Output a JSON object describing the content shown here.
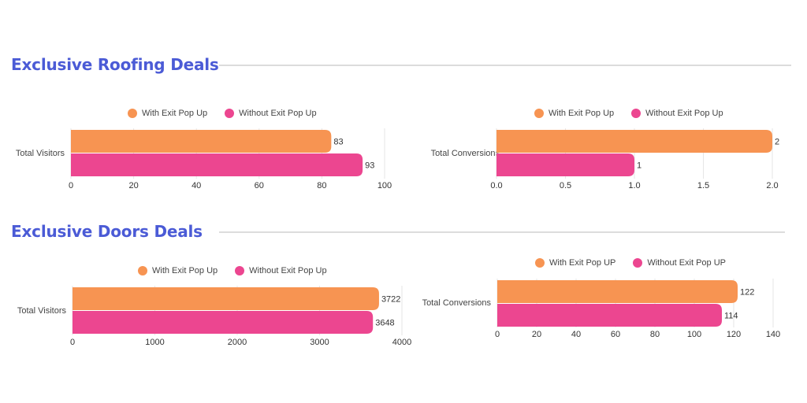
{
  "sections": [
    {
      "title": "Exclusive Roofing Deals"
    },
    {
      "title": "Exclusive Doors Deals"
    }
  ],
  "colors": {
    "with": "#F79452",
    "without": "#EC4690",
    "title": "#4B5BD6"
  },
  "chart_data": [
    {
      "type": "bar",
      "orientation": "horizontal",
      "categories": [
        "Total Visitors"
      ],
      "series": [
        {
          "name": "With Exit Pop Up",
          "values": [
            83
          ]
        },
        {
          "name": "Without Exit Pop Up",
          "values": [
            93
          ]
        }
      ],
      "xlim": [
        0,
        100
      ],
      "xticks": [
        "0",
        "20",
        "40",
        "60",
        "80",
        "100"
      ],
      "legend": "top",
      "grid": true
    },
    {
      "type": "bar",
      "orientation": "horizontal",
      "categories": [
        "Total Conversions"
      ],
      "series": [
        {
          "name": "With Exit Pop Up",
          "values": [
            2
          ]
        },
        {
          "name": "Without Exit Pop Up",
          "values": [
            1
          ]
        }
      ],
      "xlim": [
        0,
        2
      ],
      "xticks": [
        "0.0",
        "0.5",
        "1.0",
        "1.5",
        "2.0"
      ],
      "legend": "top",
      "grid": true
    },
    {
      "type": "bar",
      "orientation": "horizontal",
      "categories": [
        "Total Visitors"
      ],
      "series": [
        {
          "name": "With Exit Pop Up",
          "values": [
            3722
          ]
        },
        {
          "name": "Without Exit Pop Up",
          "values": [
            3648
          ]
        }
      ],
      "xlim": [
        0,
        4000
      ],
      "xticks": [
        "0",
        "1000",
        "2000",
        "3000",
        "4000"
      ],
      "legend": "top",
      "grid": true
    },
    {
      "type": "bar",
      "orientation": "horizontal",
      "categories": [
        "Total Conversions"
      ],
      "series": [
        {
          "name": "With Exit Pop UP",
          "values": [
            122
          ]
        },
        {
          "name": "Without Exit Pop UP",
          "values": [
            114
          ]
        }
      ],
      "xlim": [
        0,
        140
      ],
      "xticks": [
        "0",
        "20",
        "40",
        "60",
        "80",
        "100",
        "120",
        "140"
      ],
      "legend": "top",
      "grid": true
    }
  ]
}
